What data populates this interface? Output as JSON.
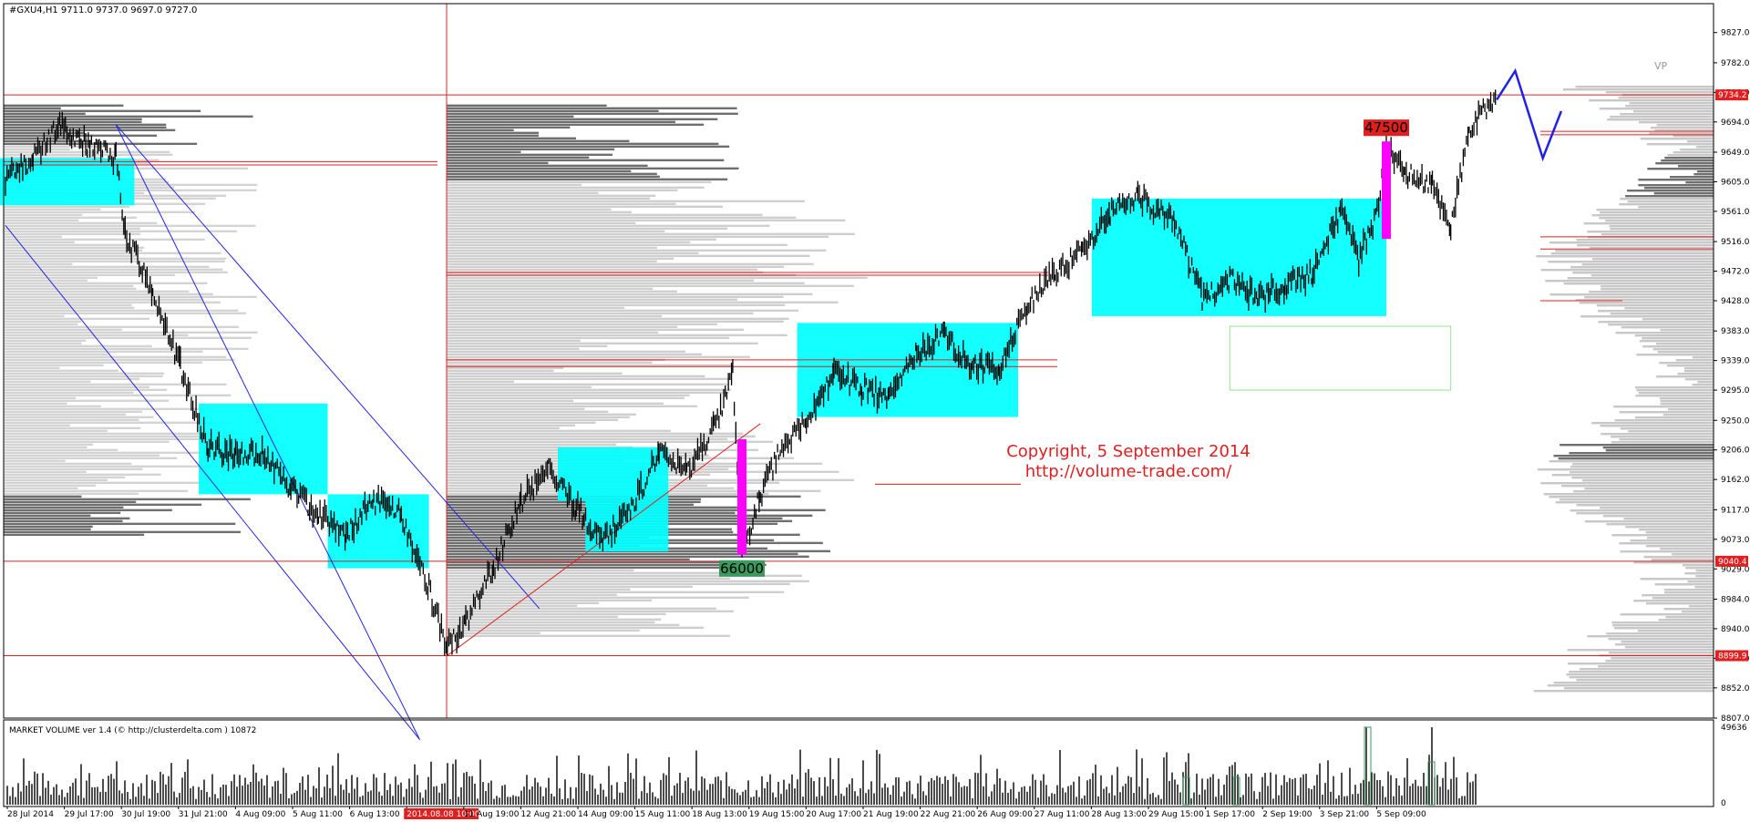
{
  "chart_data": [
    {
      "type": "candlestick",
      "symbol_header": "#GXU4,H1  9711.0 9737.0 9697.0 9727.0",
      "ylim": [
        8807,
        9870
      ],
      "y_ticks": [
        "9827.0",
        "9782.0",
        "9738.0",
        "9694.0",
        "9649.0",
        "9605.0",
        "9561.0",
        "9516.0",
        "9472.0",
        "9428.0",
        "9383.0",
        "9339.0",
        "9295.0",
        "9250.0",
        "9206.0",
        "9162.0",
        "9117.0",
        "9073.0",
        "9029.0",
        "8984.0",
        "8940.0",
        "8896.0",
        "8852.0",
        "8807.0"
      ],
      "price_markers": [
        {
          "label": "9734.2",
          "value": 9734.2
        },
        {
          "label": "9040.4",
          "value": 9040.4
        },
        {
          "label": "8899.9",
          "value": 8899.9
        }
      ],
      "x_ticks": [
        "28 Jul 2014",
        "29 Jul 17:00",
        "30 Jul 19:00",
        "31 Jul 21:00",
        "4 Aug 09:00",
        "5 Aug 11:00",
        "6 Aug 13:00",
        "2014.08.08 10:00",
        "11 Aug 19:00",
        "12 Aug 21:00",
        "14 Aug 09:00",
        "15 Aug 11:00",
        "18 Aug 13:00",
        "19 Aug 15:00",
        "20 Aug 17:00",
        "21 Aug 19:00",
        "22 Aug 21:00",
        "26 Aug 09:00",
        "27 Aug 11:00",
        "28 Aug 13:00",
        "29 Aug 15:00",
        "1 Sep 17:00",
        "2 Sep 19:00",
        "3 Sep 21:00",
        "5 Sep 09:00"
      ],
      "highlighted_x_tick": "2014.08.08 10:00",
      "price_path": [
        [
          0,
          9610
        ],
        [
          3,
          9640
        ],
        [
          6,
          9690
        ],
        [
          9,
          9660
        ],
        [
          12,
          9640
        ],
        [
          13,
          9530
        ],
        [
          16,
          9440
        ],
        [
          19,
          9330
        ],
        [
          22,
          9210
        ],
        [
          25,
          9200
        ],
        [
          28,
          9200
        ],
        [
          31,
          9150
        ],
        [
          34,
          9110
        ],
        [
          37,
          9080
        ],
        [
          40,
          9130
        ],
        [
          43,
          9110
        ],
        [
          46,
          9000
        ],
        [
          48,
          8910
        ],
        [
          50,
          8950
        ],
        [
          53,
          9030
        ],
        [
          56,
          9130
        ],
        [
          59,
          9180
        ],
        [
          62,
          9120
        ],
        [
          65,
          9070
        ],
        [
          68,
          9120
        ],
        [
          71,
          9200
        ],
        [
          74,
          9170
        ],
        [
          77,
          9240
        ],
        [
          79,
          9320
        ],
        [
          80,
          9050
        ],
        [
          82,
          9140
        ],
        [
          84,
          9200
        ],
        [
          87,
          9250
        ],
        [
          90,
          9320
        ],
        [
          93,
          9300
        ],
        [
          96,
          9280
        ],
        [
          99,
          9350
        ],
        [
          102,
          9380
        ],
        [
          105,
          9330
        ],
        [
          108,
          9330
        ],
        [
          111,
          9420
        ],
        [
          114,
          9470
        ],
        [
          117,
          9500
        ],
        [
          120,
          9560
        ],
        [
          123,
          9580
        ],
        [
          127,
          9550
        ],
        [
          130,
          9430
        ],
        [
          133,
          9460
        ],
        [
          136,
          9430
        ],
        [
          139,
          9450
        ],
        [
          142,
          9470
        ],
        [
          145,
          9560
        ],
        [
          147,
          9490
        ],
        [
          149,
          9560
        ],
        [
          150,
          9660
        ],
        [
          152,
          9620
        ],
        [
          155,
          9600
        ],
        [
          157,
          9540
        ],
        [
          159,
          9680
        ],
        [
          161,
          9720
        ],
        [
          162,
          9727
        ]
      ],
      "forecast_path": [
        [
          162,
          9727
        ],
        [
          164,
          9770
        ],
        [
          167,
          9640
        ],
        [
          169,
          9710
        ]
      ],
      "consolidation_boxes": [
        {
          "x0": -1,
          "x1": 14,
          "high": 9640,
          "low": 9570
        },
        {
          "x0": 21,
          "x1": 35,
          "high": 9275,
          "low": 9140
        },
        {
          "x0": 35,
          "x1": 46,
          "high": 9140,
          "low": 9030
        },
        {
          "x0": 60,
          "x1": 72,
          "high": 9210,
          "low": 9130
        },
        {
          "x0": 63,
          "x1": 72,
          "high": 9130,
          "low": 9055
        },
        {
          "x0": 86,
          "x1": 110,
          "high": 9395,
          "low": 9255
        },
        {
          "x0": 118,
          "x1": 150,
          "high": 9580,
          "low": 9405
        }
      ],
      "outline_box": {
        "x0": 133,
        "x1": 157,
        "high": 9390,
        "low": 9295
      },
      "spike_markers": [
        {
          "x": 80,
          "high": 9222,
          "low": 9050,
          "label": "66000",
          "label_color": "#3a9a5e"
        },
        {
          "x": 150,
          "high": 9665,
          "low": 9520,
          "label": "47500",
          "label_color": "#e02020"
        }
      ],
      "channel_lines": [
        {
          "from": [
            12,
            9690
          ],
          "to": [
            45,
            8775
          ],
          "color": "#2424e0"
        },
        {
          "from": [
            0,
            9540
          ],
          "to": [
            45,
            8775
          ],
          "color": "#2424e0"
        },
        {
          "from": [
            12,
            9690
          ],
          "to": [
            58,
            8970
          ],
          "color": "#2424e0"
        },
        {
          "from": [
            48,
            8900
          ],
          "to": [
            82,
            9245
          ],
          "color": "#e02020"
        }
      ],
      "support_resistance": [
        9734.2,
        9040.4,
        8899.9
      ],
      "annotation_lines": [
        "Copyright, 5 September 2014",
        "http://volume-trade.com/"
      ],
      "volume_profile_label": "VP"
    },
    {
      "type": "bar",
      "title": "MARKET VOLUME ver 1.4 (© http://clusterdelta.com ) 10872",
      "y_ticks": [
        "49636",
        "0"
      ],
      "ylim": [
        0,
        49636
      ],
      "seed": 7
    }
  ]
}
